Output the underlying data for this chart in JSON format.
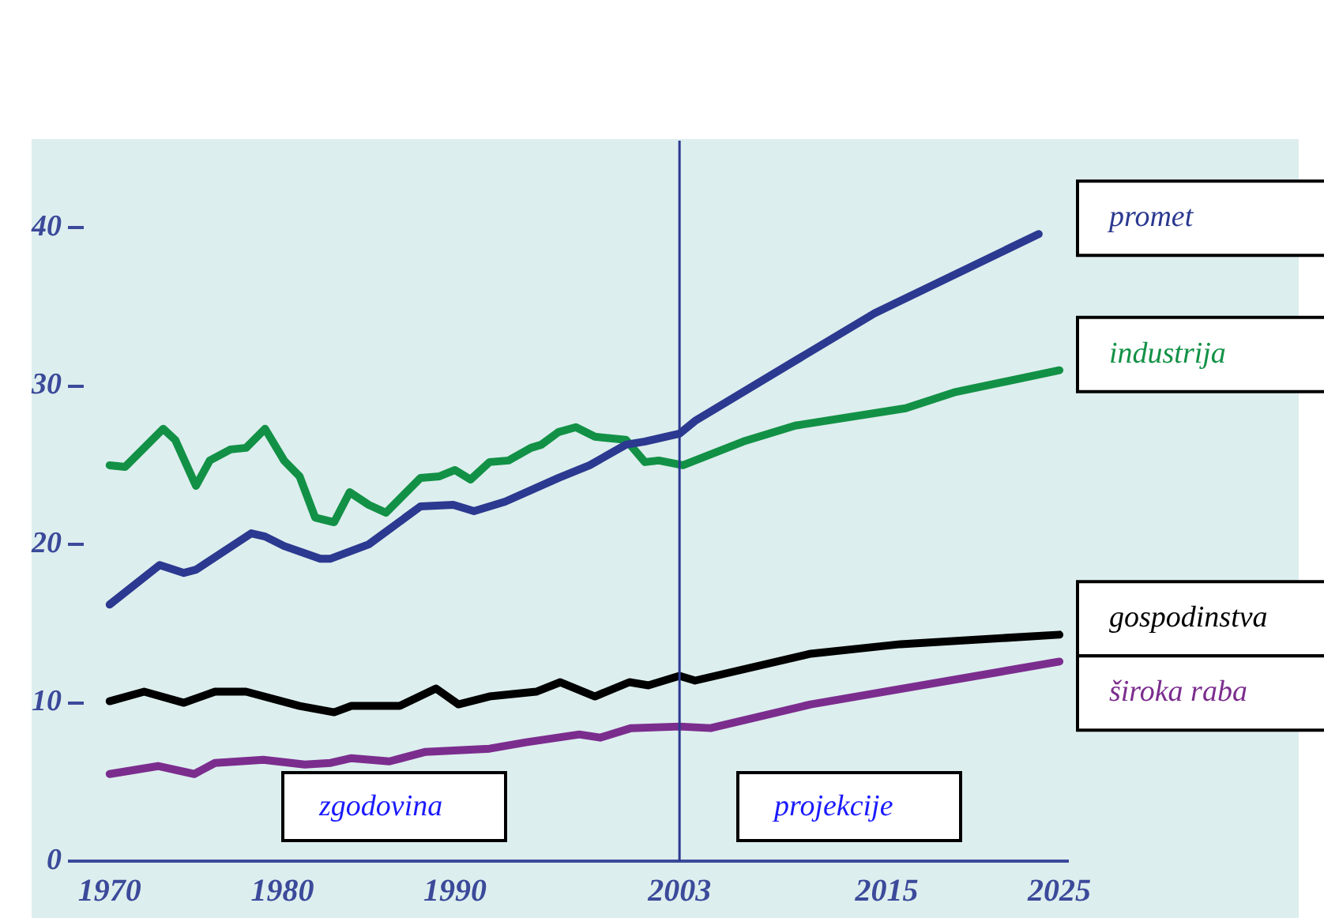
{
  "chart_data": {
    "type": "line",
    "xlim": [
      1968.5,
      2025.5
    ],
    "xticks": [
      1970,
      1980,
      1990,
      2003,
      2015,
      2025
    ],
    "ylim": [
      0,
      45.5
    ],
    "yticks": [
      0,
      10,
      20,
      30,
      40
    ],
    "grid": false,
    "legend": false,
    "marker": "none",
    "line_style": "solid",
    "series": [
      {
        "name": "promet",
        "color": "#2b3990",
        "x": [
          1970,
          1972.9,
          1974.3,
          1975,
          1978.2,
          1979,
          1980.1,
          1982.2,
          1982.8,
          1985,
          1988,
          1989.9,
          1991.1,
          1992.9,
          1996,
          1997.8,
          1999.9,
          2001,
          2003,
          2003.9,
          2009.7,
          2014.3,
          2023.8
        ],
        "values": [
          16.2,
          18.7,
          18.2,
          18.4,
          20.7,
          20.5,
          19.9,
          19.1,
          19.1,
          20.0,
          22.4,
          22.5,
          22.1,
          22.7,
          24.2,
          25.0,
          26.3,
          26.5,
          27.0,
          27.8,
          31.6,
          34.6,
          39.6
        ]
      },
      {
        "name": "industrija",
        "color": "#129146",
        "x": [
          1970,
          1970.9,
          1973.1,
          1973.8,
          1975,
          1975.8,
          1977,
          1977.9,
          1979,
          1980.1,
          1981,
          1981.9,
          1983,
          1983.9,
          1985,
          1986,
          1988,
          1989.1,
          1990,
          1990.9,
          1992,
          1993.1,
          1994.4,
          1995,
          1996,
          1997,
          1998.1,
          1999.9,
          2001,
          2001.8,
          2003.2,
          2006.7,
          2009.7,
          2016.1,
          2018.9,
          2025
        ],
        "values": [
          25.0,
          24.9,
          27.3,
          26.6,
          23.7,
          25.3,
          26.0,
          26.1,
          27.3,
          25.3,
          24.3,
          21.7,
          21.4,
          23.3,
          22.5,
          22.0,
          24.2,
          24.3,
          24.7,
          24.1,
          25.2,
          25.3,
          26.1,
          26.3,
          27.1,
          27.4,
          26.8,
          26.6,
          25.2,
          25.3,
          25.0,
          26.5,
          27.5,
          28.6,
          29.6,
          31.0
        ]
      },
      {
        "name": "gospodinstva",
        "color": "#000000",
        "x": [
          1970,
          1972,
          1974.3,
          1976.1,
          1977.9,
          1981,
          1983,
          1984,
          1986.8,
          1988.9,
          1990.2,
          1992,
          1994.7,
          1996.1,
          1998.1,
          2000.1,
          2001.2,
          2003,
          2003.9,
          2010.6,
          2015.8,
          2025
        ],
        "values": [
          10.1,
          10.7,
          10.0,
          10.7,
          10.7,
          9.8,
          9.4,
          9.8,
          9.8,
          10.9,
          9.9,
          10.4,
          10.7,
          11.3,
          10.4,
          11.3,
          11.1,
          11.7,
          11.4,
          13.1,
          13.7,
          14.3
        ]
      },
      {
        "name": "široka raba",
        "color": "#7b2d8e",
        "x": [
          1970,
          1972.8,
          1974.9,
          1976.1,
          1978.9,
          1981.3,
          1982.8,
          1984,
          1986.2,
          1988.3,
          1992,
          1994.1,
          1997.2,
          1998.4,
          2000.2,
          2003,
          2004.8,
          2010.6,
          2025
        ],
        "values": [
          5.5,
          6.0,
          5.5,
          6.2,
          6.4,
          6.1,
          6.2,
          6.5,
          6.3,
          6.9,
          7.1,
          7.5,
          8.0,
          7.8,
          8.4,
          8.5,
          8.4,
          9.9,
          12.6
        ]
      }
    ],
    "ref_lines": [
      {
        "axis": "x",
        "value": 2003,
        "color": "#2b3990"
      }
    ],
    "annotations": [
      "zgodovina",
      "projekcije"
    ]
  }
}
